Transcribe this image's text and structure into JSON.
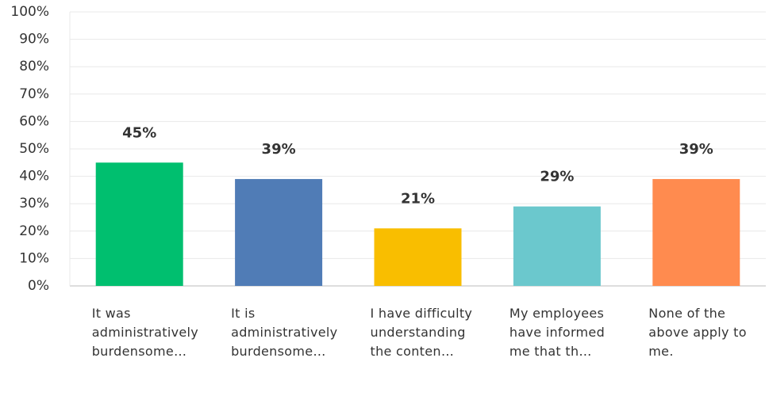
{
  "chart_data": {
    "type": "bar",
    "categories": [
      "It was administratively burdensome…",
      "It is administratively burdensome…",
      "I have difficulty understanding the conten…",
      "My employees have informed me that th…",
      "None of the above apply to me."
    ],
    "values": [
      45,
      39,
      21,
      29,
      39
    ],
    "value_labels": [
      "45%",
      "39%",
      "21%",
      "29%",
      "39%"
    ],
    "colors": [
      "#00bf6f",
      "#507cb6",
      "#f9be00",
      "#6bc8cd",
      "#ff8b4f"
    ],
    "ylim": [
      0,
      100
    ],
    "yticks": [
      {
        "value": 0,
        "label": "0%"
      },
      {
        "value": 10,
        "label": "10%"
      },
      {
        "value": 20,
        "label": "20%"
      },
      {
        "value": 30,
        "label": "30%"
      },
      {
        "value": 40,
        "label": "40%"
      },
      {
        "value": 50,
        "label": "50%"
      },
      {
        "value": 60,
        "label": "60%"
      },
      {
        "value": 70,
        "label": "70%"
      },
      {
        "value": 80,
        "label": "80%"
      },
      {
        "value": 90,
        "label": "90%"
      },
      {
        "value": 100,
        "label": "100%"
      }
    ],
    "grid": true
  }
}
